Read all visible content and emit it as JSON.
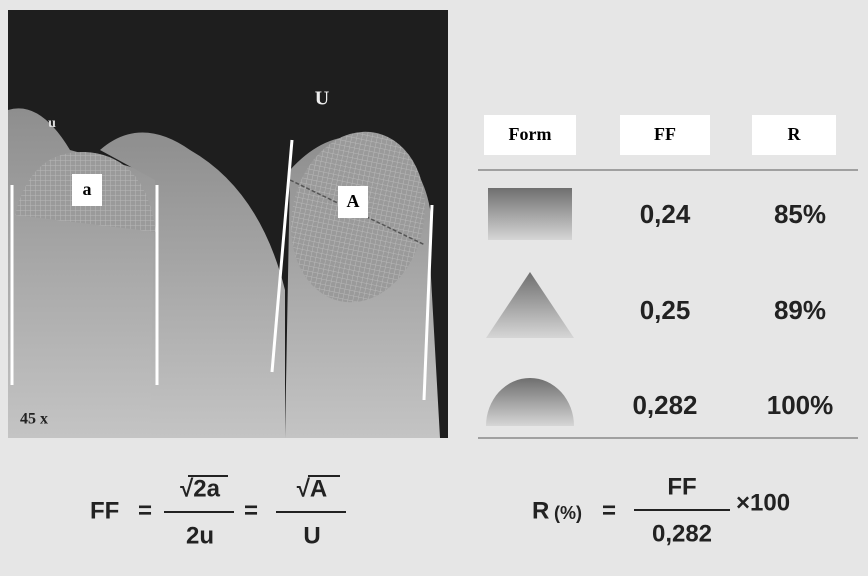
{
  "image": {
    "labels": {
      "small_u": "u",
      "small_a": "a",
      "big_u": "U",
      "big_a": "A"
    },
    "magnification": "45 x"
  },
  "table": {
    "headers": [
      "Form",
      "FF",
      "R"
    ],
    "rows": [
      [
        "0,24",
        "85%"
      ],
      [
        "0,25",
        "89%"
      ],
      [
        "0,282",
        "100%"
      ]
    ]
  },
  "formulas": {
    "ff": {
      "lhs": "FF",
      "eq1": "=",
      "num1": "√2a",
      "den1": "2u",
      "eq2": "=",
      "num2": "√A",
      "den2": "U"
    },
    "r": {
      "lhs": "R",
      "unit": "(%)",
      "eq": "=",
      "num": "FF",
      "den": "0,282",
      "factor": "×100"
    }
  }
}
